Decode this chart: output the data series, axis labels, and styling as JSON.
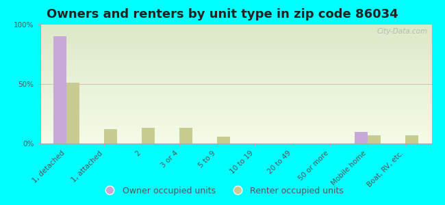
{
  "title": "Owners and renters by unit type in zip code 86034",
  "categories": [
    "1, detached",
    "1, attached",
    "2",
    "3 or 4",
    "5 to 9",
    "10 to 19",
    "20 to 49",
    "50 or more",
    "Mobile home",
    "Boat, RV, etc."
  ],
  "owner_values": [
    90,
    0,
    0,
    0,
    0,
    0,
    0,
    0,
    10,
    0
  ],
  "renter_values": [
    51,
    12,
    13,
    13,
    6,
    0,
    0,
    0,
    7,
    7
  ],
  "owner_color": "#c8a8d8",
  "renter_color": "#c8cc90",
  "background_color": "#00ffff",
  "ylabel_ticks": [
    "0%",
    "50%",
    "100%"
  ],
  "ytick_values": [
    0,
    50,
    100
  ],
  "bar_width": 0.35,
  "title_fontsize": 13,
  "tick_fontsize": 7.5,
  "legend_fontsize": 9,
  "watermark_text": "City-Data.com"
}
